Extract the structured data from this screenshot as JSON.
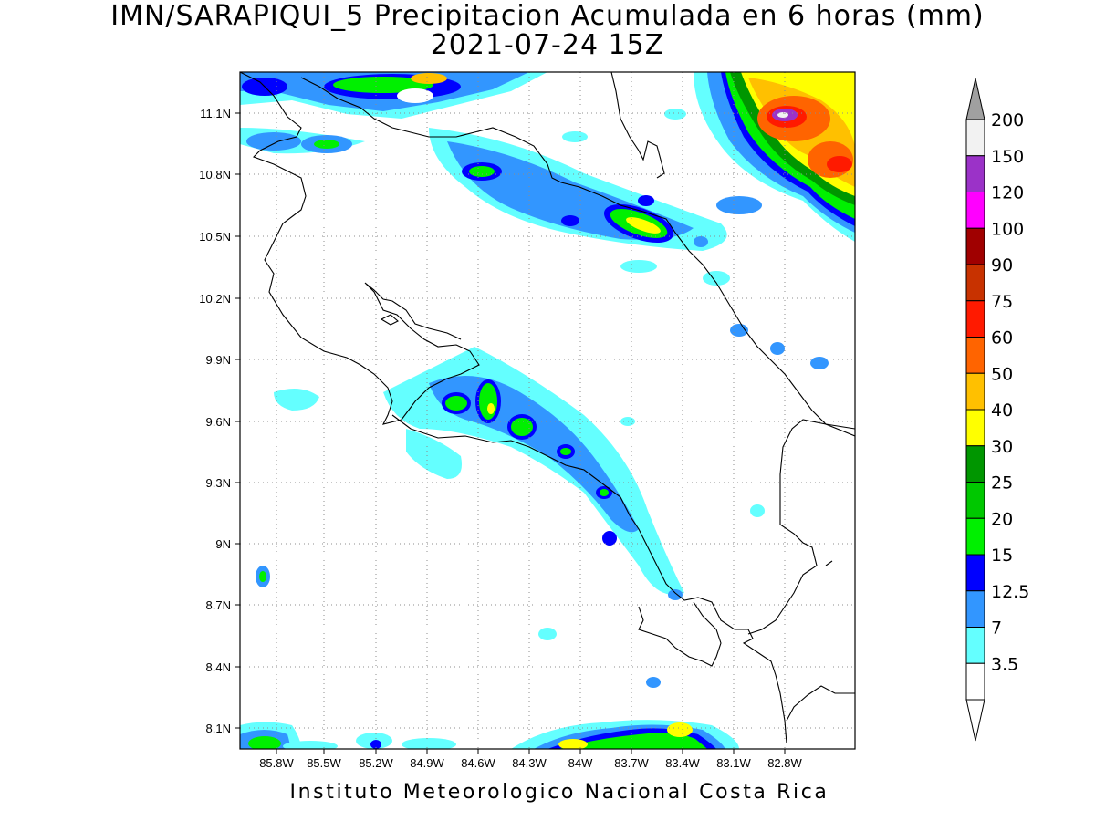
{
  "map": {
    "title_line1": "IMN/SARAPIQUI_5 Precipitacion Acumulada en 6 horas (mm)",
    "title_line2": "2021-07-24 15Z",
    "footer": "Instituto Meteorologico Nacional Costa Rica",
    "lat_labels": [
      "11.1N",
      "10.8N",
      "10.5N",
      "10.2N",
      "9.9N",
      "9.6N",
      "9.3N",
      "9N",
      "8.7N",
      "8.4N",
      "8.1N"
    ],
    "lon_labels": [
      "85.8W",
      "85.5W",
      "85.2W",
      "84.9W",
      "84.6W",
      "84.3W",
      "84W",
      "83.7W",
      "83.4W",
      "83.1W",
      "82.8W"
    ]
  },
  "legend": {
    "levels": [
      {
        "label": "200",
        "color": "#f2f2f2"
      },
      {
        "label": "150",
        "color": "#9b32c8"
      },
      {
        "label": "120",
        "color": "#ff00ff"
      },
      {
        "label": "100",
        "color": "#a00000"
      },
      {
        "label": "90",
        "color": "#c83200"
      },
      {
        "label": "75",
        "color": "#ff1a00"
      },
      {
        "label": "60",
        "color": "#ff6400"
      },
      {
        "label": "50",
        "color": "#ffc000"
      },
      {
        "label": "40",
        "color": "#ffff00"
      },
      {
        "label": "30",
        "color": "#009600"
      },
      {
        "label": "25",
        "color": "#00c800"
      },
      {
        "label": "20",
        "color": "#00f000"
      },
      {
        "label": "15",
        "color": "#0000ff"
      },
      {
        "label": "12.5",
        "color": "#3296ff"
      },
      {
        "label": "7",
        "color": "#64ffff"
      },
      {
        "label": "3.5",
        "color": "#ffffff"
      }
    ],
    "top_arrow_color": "#a0a0a0",
    "bottom_arrow_color": "#ffffff"
  }
}
